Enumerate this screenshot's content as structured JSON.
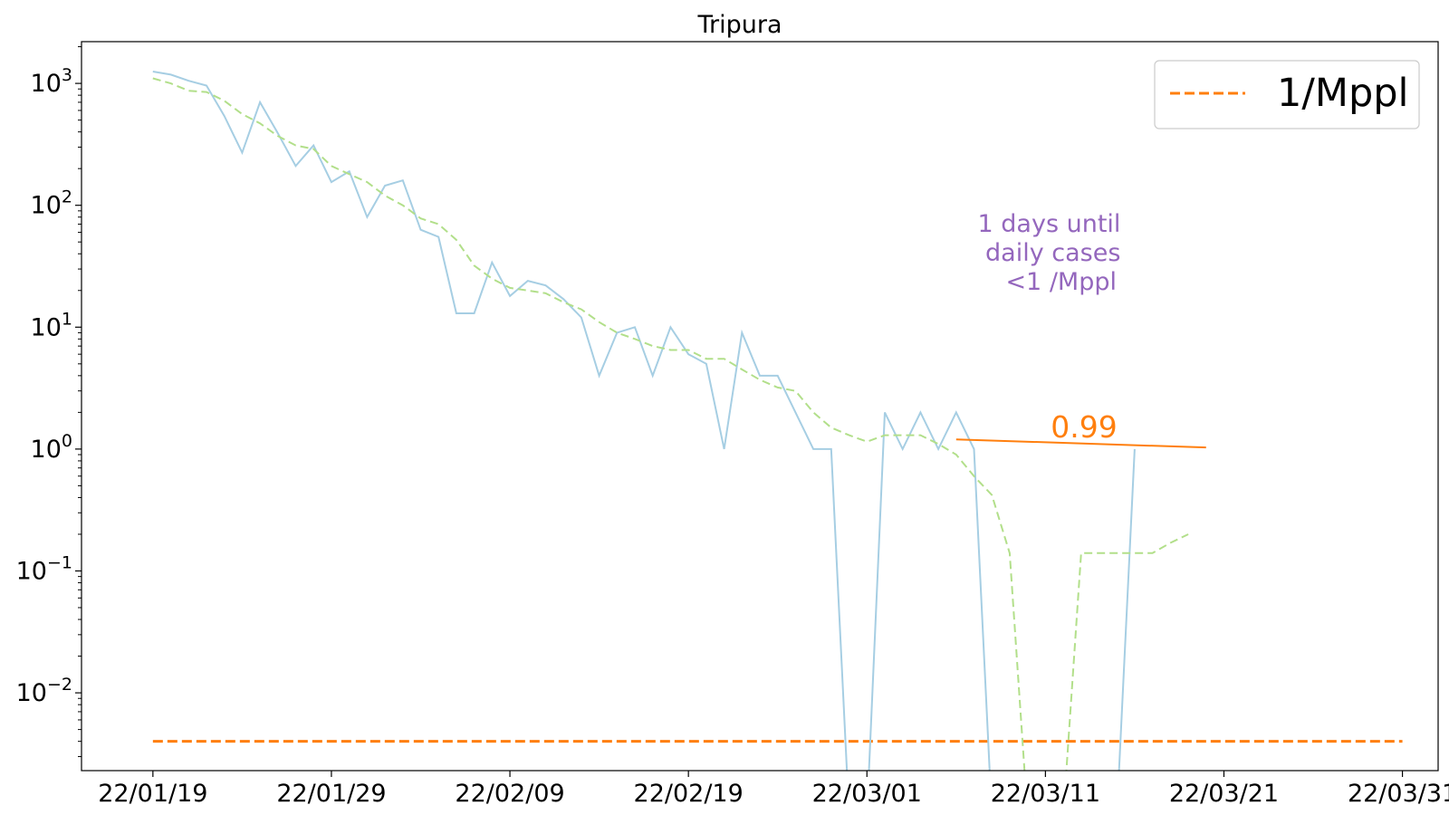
{
  "chart_data": {
    "type": "line",
    "title": "Tripura",
    "xlabel": "",
    "ylabel": "",
    "y_scale": "log",
    "ylim": [
      0.0023,
      2200
    ],
    "x_range": [
      "2022-01-15",
      "2022-04-01"
    ],
    "grid": false,
    "legend": {
      "placement": "top-right",
      "entries": [
        "1/Mppl"
      ]
    },
    "x_ticks": [
      {
        "date": "2022-01-19",
        "label": "22/01/19"
      },
      {
        "date": "2022-01-29",
        "label": "22/01/29"
      },
      {
        "date": "2022-02-08",
        "label": "22/02/09"
      },
      {
        "date": "2022-02-18",
        "label": "22/02/19"
      },
      {
        "date": "2022-02-28",
        "label": "22/03/01"
      },
      {
        "date": "2022-03-10",
        "label": "22/03/11"
      },
      {
        "date": "2022-03-20",
        "label": "22/03/21"
      },
      {
        "date": "2022-03-30",
        "label": "22/03/31"
      }
    ],
    "y_ticks": [
      {
        "value": 0.01,
        "base": "10",
        "exp": "−2"
      },
      {
        "value": 0.1,
        "base": "10",
        "exp": "−1"
      },
      {
        "value": 1,
        "base": "10",
        "exp": "0"
      },
      {
        "value": 10,
        "base": "10",
        "exp": "1"
      },
      {
        "value": 100,
        "base": "10",
        "exp": "2"
      },
      {
        "value": 1000,
        "base": "10",
        "exp": "3"
      }
    ],
    "series": [
      {
        "style": "daily",
        "color": "#a6cee3",
        "x": [
          "2022-01-19",
          "2022-01-20",
          "2022-01-21",
          "2022-01-22",
          "2022-01-23",
          "2022-01-24",
          "2022-01-25",
          "2022-01-26",
          "2022-01-27",
          "2022-01-28",
          "2022-01-29",
          "2022-01-30",
          "2022-01-31",
          "2022-02-01",
          "2022-02-02",
          "2022-02-03",
          "2022-02-04",
          "2022-02-05",
          "2022-02-06",
          "2022-02-07",
          "2022-02-08",
          "2022-02-09",
          "2022-02-10",
          "2022-02-11",
          "2022-02-12",
          "2022-02-13",
          "2022-02-14",
          "2022-02-15",
          "2022-02-16",
          "2022-02-17",
          "2022-02-18",
          "2022-02-19",
          "2022-02-20",
          "2022-02-21",
          "2022-02-22",
          "2022-02-23",
          "2022-02-24",
          "2022-02-25",
          "2022-02-26",
          "2022-02-27",
          "2022-02-28",
          "2022-03-01",
          "2022-03-02",
          "2022-03-03",
          "2022-03-04",
          "2022-03-05",
          "2022-03-06",
          "2022-03-07",
          "2022-03-08",
          "2022-03-09",
          "2022-03-10",
          "2022-03-11",
          "2022-03-12",
          "2022-03-13",
          "2022-03-14",
          "2022-03-15"
        ],
        "values": [
          1250,
          1180,
          1050,
          960,
          540,
          270,
          700,
          390,
          210,
          310,
          155,
          190,
          80,
          145,
          160,
          63,
          55,
          13,
          13,
          34,
          18,
          24,
          22,
          17,
          12,
          4,
          9,
          10,
          4,
          10,
          6,
          5,
          1,
          9,
          4,
          4,
          2,
          1,
          1,
          0,
          0,
          2,
          1,
          2,
          1,
          2,
          1,
          0,
          0,
          0,
          0,
          0,
          0,
          0,
          0,
          1
        ]
      },
      {
        "style": "rolling average",
        "color": "#b2df8a",
        "x": [
          "2022-01-19",
          "2022-01-20",
          "2022-01-21",
          "2022-01-22",
          "2022-01-23",
          "2022-01-24",
          "2022-01-25",
          "2022-01-26",
          "2022-01-27",
          "2022-01-28",
          "2022-01-29",
          "2022-01-30",
          "2022-01-31",
          "2022-02-01",
          "2022-02-02",
          "2022-02-03",
          "2022-02-04",
          "2022-02-05",
          "2022-02-06",
          "2022-02-07",
          "2022-02-08",
          "2022-02-09",
          "2022-02-10",
          "2022-02-11",
          "2022-02-12",
          "2022-02-13",
          "2022-02-14",
          "2022-02-15",
          "2022-02-16",
          "2022-02-17",
          "2022-02-18",
          "2022-02-19",
          "2022-02-20",
          "2022-02-21",
          "2022-02-22",
          "2022-02-23",
          "2022-02-24",
          "2022-02-25",
          "2022-02-26",
          "2022-02-27",
          "2022-02-28",
          "2022-03-01",
          "2022-03-02",
          "2022-03-03",
          "2022-03-04",
          "2022-03-05",
          "2022-03-06",
          "2022-03-07",
          "2022-03-08",
          "2022-03-09",
          "2022-03-10",
          "2022-03-11",
          "2022-03-12",
          "2022-03-13",
          "2022-03-14",
          "2022-03-15",
          "2022-03-16",
          "2022-03-17",
          "2022-03-18"
        ],
        "values": [
          1100,
          1000,
          870,
          850,
          720,
          560,
          470,
          370,
          310,
          290,
          210,
          180,
          155,
          120,
          100,
          78,
          70,
          52,
          32,
          25,
          21,
          20,
          19,
          16,
          14,
          11,
          9,
          8,
          7,
          6.5,
          6.5,
          5.5,
          5.5,
          4.5,
          3.7,
          3.2,
          3,
          2,
          1.5,
          1.3,
          1.15,
          1.3,
          1.3,
          1.3,
          1.1,
          0.9,
          0.6,
          0.42,
          0.14,
          0,
          0,
          0,
          0.14,
          0.14,
          0.14,
          0.14,
          0.14,
          0.17,
          0.2
        ]
      }
    ],
    "reference_line": {
      "label": "1/Mppl",
      "value": 0.004,
      "color": "#ff7f0e",
      "x_start": "2022-01-19",
      "x_end": "2022-03-30"
    },
    "trend_line": {
      "color": "#ff7f0e",
      "x_start": "2022-03-05",
      "y_start": 1.2,
      "x_end": "2022-03-19",
      "y_end": 1.03,
      "label": "0.99"
    },
    "annotation": {
      "lines": [
        "1 days until",
        "daily cases",
        "<1 /Mppl"
      ],
      "color": "#9467bd"
    }
  }
}
